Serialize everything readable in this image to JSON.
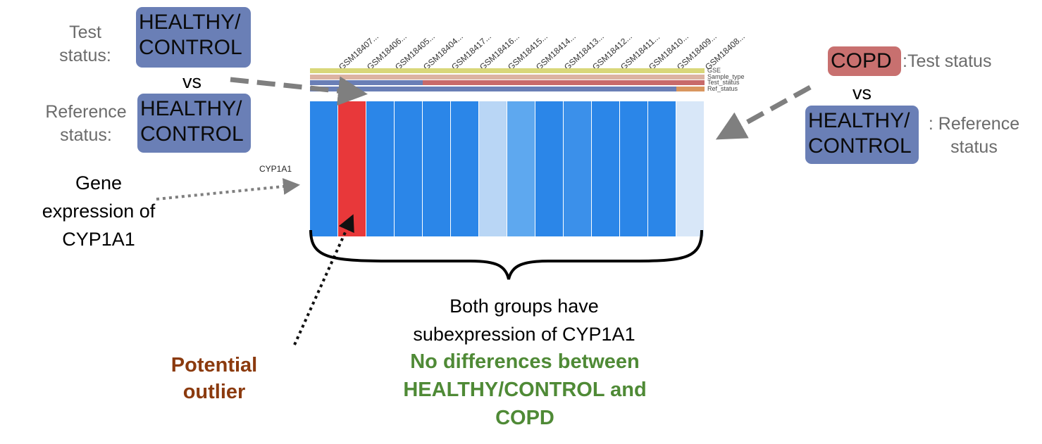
{
  "left": {
    "test_label": "Test\nstatus:",
    "test_badge": "HEALTHY/\nCONTROL",
    "vs": "vs",
    "ref_label": "Reference\nstatus:",
    "ref_badge": "HEALTHY/\nCONTROL",
    "gene_note": "Gene\nexpression of\nCYP1A1"
  },
  "right": {
    "test_badge": "COPD",
    "test_label": ":Test status",
    "vs": "vs",
    "ref_badge": "HEALTHY/\nCONTROL",
    "ref_label": ": Reference\nstatus"
  },
  "heatmap": {
    "gene": "CYP1A1",
    "samples": [
      "GSM18407...",
      "GSM18406...",
      "GSM18405...",
      "GSM18404...",
      "GSM18417...",
      "GSM18416...",
      "GSM18415...",
      "GSM18414...",
      "GSM18413...",
      "GSM18412...",
      "GSM18411...",
      "GSM18410...",
      "GSM18409...",
      "GSM18408..."
    ],
    "tracks": [
      "GSE",
      "Sample_type",
      "Test_status",
      "Ref_status"
    ],
    "cell_colors": [
      "#2b86e8",
      "#e8383a",
      "#2b86e8",
      "#2b86e8",
      "#2b86e8",
      "#2b86e8",
      "#b9d6f5",
      "#5ea8ef",
      "#2b86e8",
      "#3b90ea",
      "#2b86e8",
      "#2b86e8",
      "#2b86e8",
      "#d8e7f8"
    ],
    "track_colors": {
      "GSE": "#d9d77a",
      "Sample_type": "#dcb3a2",
      "Test_status": [
        "#6a7fb6",
        "#c86a6a"
      ],
      "Ref_status": [
        "#6a7fb6",
        "#d9965f"
      ]
    }
  },
  "bottom": {
    "conclusion": "Both groups have\nsubexpression of CYP1A1",
    "highlight": "No differences between\nHEALTHY/CONTROL and\nCOPD",
    "outlier": "Potential\noutlier"
  }
}
